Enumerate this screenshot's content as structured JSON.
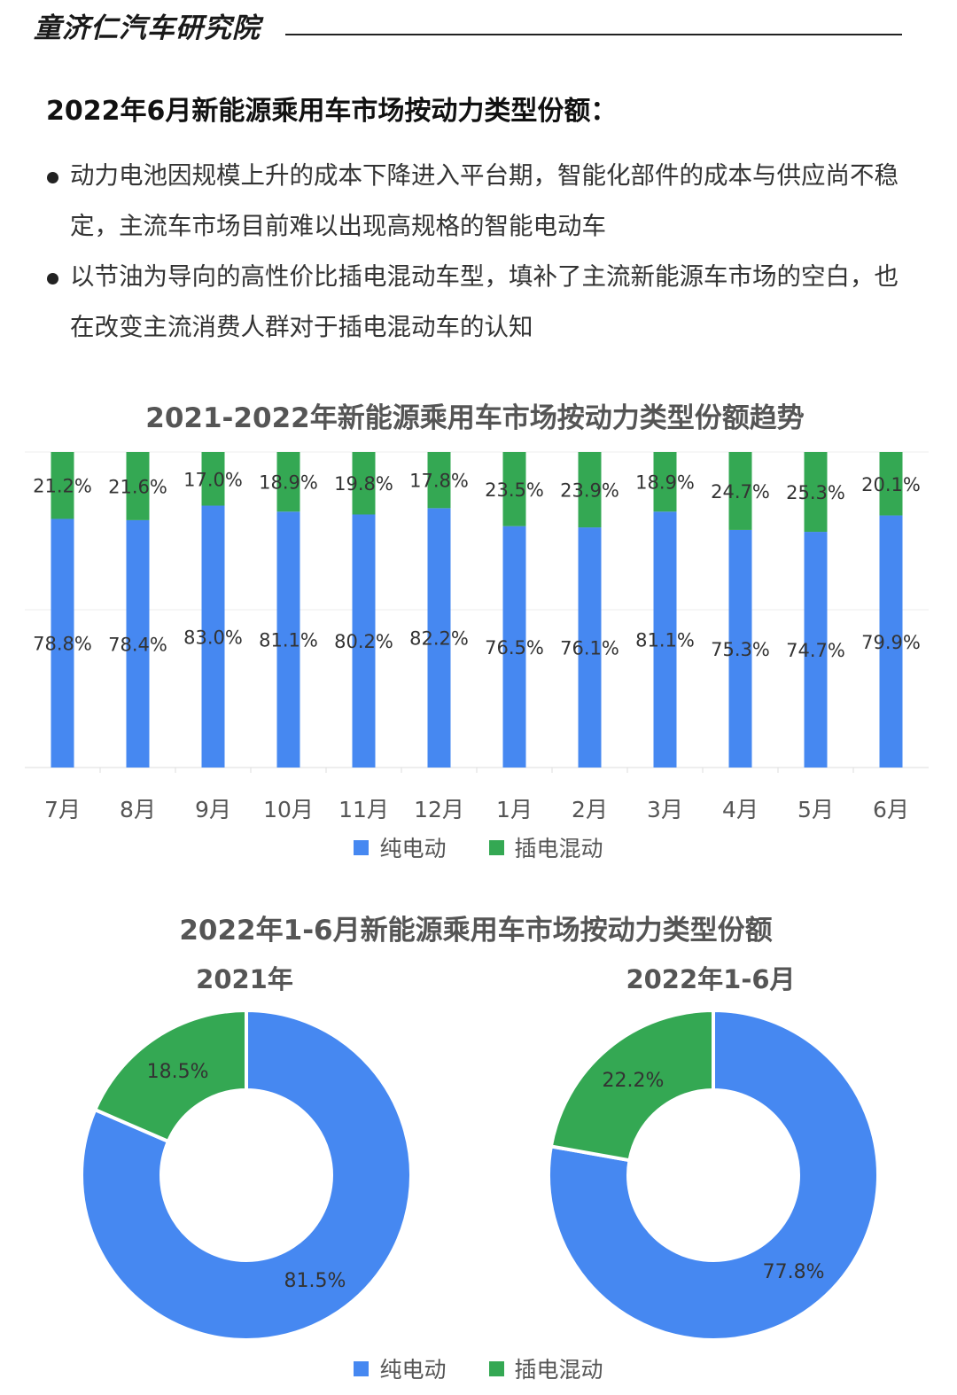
{
  "brand": "童济仁汽车研究院",
  "heading": "2022年6月新能源乘用车市场按动力类型份额：",
  "bullets": [
    "动力电池因规模上升的成本下降进入平台期，智能化部件的成本与供应尚不稳定，主流车市场目前难以出现高规格的智能电动车",
    "以节油为导向的高性价比插电混动车型，填补了主流新能源车市场的空白，也在改变主流消费人群对于插电混动车的认知"
  ],
  "colors": {
    "bev": "#4688f1",
    "phev": "#34a853",
    "text": "#333333"
  },
  "legend": {
    "bev": "纯电动",
    "phev": "插电混动"
  },
  "chart_data": [
    {
      "type": "bar",
      "stacked": true,
      "title": "2021-2022年新能源乘用车市场按动力类型份额趋势",
      "categories": [
        "7月",
        "8月",
        "9月",
        "10月",
        "11月",
        "12月",
        "1月",
        "2月",
        "3月",
        "4月",
        "5月",
        "6月"
      ],
      "series": [
        {
          "name": "纯电动",
          "values": [
            78.8,
            78.4,
            83.0,
            81.1,
            80.2,
            82.2,
            76.5,
            76.1,
            81.1,
            75.3,
            74.7,
            79.9
          ]
        },
        {
          "name": "插电混动",
          "values": [
            21.2,
            21.6,
            17.0,
            18.9,
            19.8,
            17.8,
            23.5,
            23.9,
            18.9,
            24.7,
            25.3,
            20.1
          ]
        }
      ],
      "unit": "%",
      "ylim": [
        0,
        100
      ],
      "grid": true,
      "legend_position": "bottom"
    },
    {
      "type": "pie",
      "title": "2022年1-6月新能源乘用车市场按动力类型份额",
      "legend_position": "bottom",
      "pies": [
        {
          "name": "2021年",
          "slices": [
            {
              "label": "纯电动",
              "value": 81.5
            },
            {
              "label": "插电混动",
              "value": 18.5
            }
          ]
        },
        {
          "name": "2022年1-6月",
          "slices": [
            {
              "label": "纯电动",
              "value": 77.8
            },
            {
              "label": "插电混动",
              "value": 22.2
            }
          ]
        }
      ]
    }
  ]
}
